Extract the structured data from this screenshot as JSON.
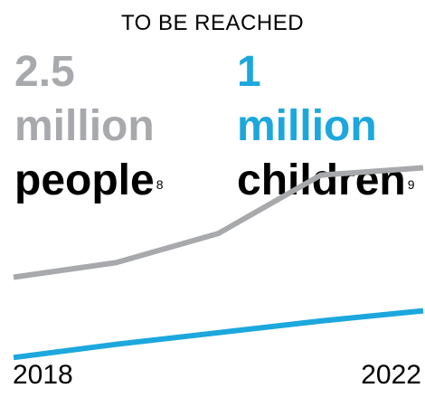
{
  "heading": "TO BE REACHED",
  "metrics": {
    "people": {
      "number": "2.5",
      "unit": "million",
      "noun": "people",
      "footnote": "8",
      "color": "#a7a9ac"
    },
    "children": {
      "number": "1",
      "unit": "million",
      "noun": "children",
      "footnote": "9",
      "color": "#1ca7dd"
    }
  },
  "chart_data": {
    "type": "line",
    "x": [
      2018,
      2019,
      2020,
      2021,
      2022
    ],
    "tick_labels": [
      "2018",
      "2022"
    ],
    "ylim": [
      0,
      3
    ],
    "grid": false,
    "series": [
      {
        "color": "#a7a9ac",
        "values": [
          1.1,
          1.2,
          1.4,
          1.8,
          1.85
        ]
      },
      {
        "color": "#1ca7dd",
        "values": [
          0.55,
          0.64,
          0.72,
          0.8,
          0.87
        ]
      }
    ]
  }
}
